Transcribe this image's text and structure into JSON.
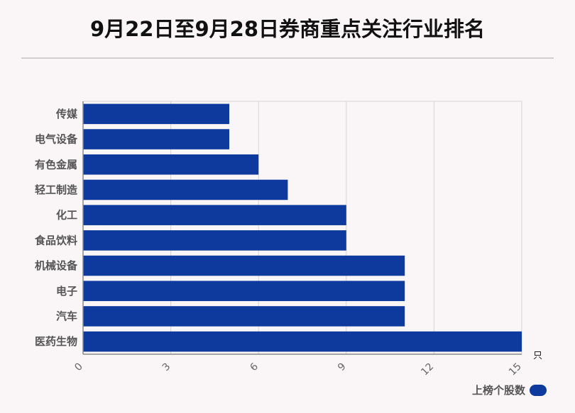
{
  "title": "9月22日至9月28日券商重点关注行业排名",
  "colors": {
    "bar": "#0e3a9e",
    "grid": "#d4d4d4",
    "axis": "#888888"
  },
  "chart_data": {
    "type": "bar",
    "orientation": "horizontal",
    "categories": [
      "传媒",
      "电气设备",
      "有色金属",
      "轻工制造",
      "化工",
      "食品饮料",
      "机械设备",
      "电子",
      "汽车",
      "医药生物"
    ],
    "series": [
      {
        "name": "上榜个股数",
        "values": [
          5,
          5,
          6,
          7,
          9,
          9,
          11,
          11,
          11,
          15
        ]
      }
    ],
    "xlim": [
      0,
      15
    ],
    "xticks": [
      0,
      3,
      6,
      9,
      12,
      15
    ],
    "xunit": "只",
    "grid": true,
    "legend": "bottom-right"
  }
}
